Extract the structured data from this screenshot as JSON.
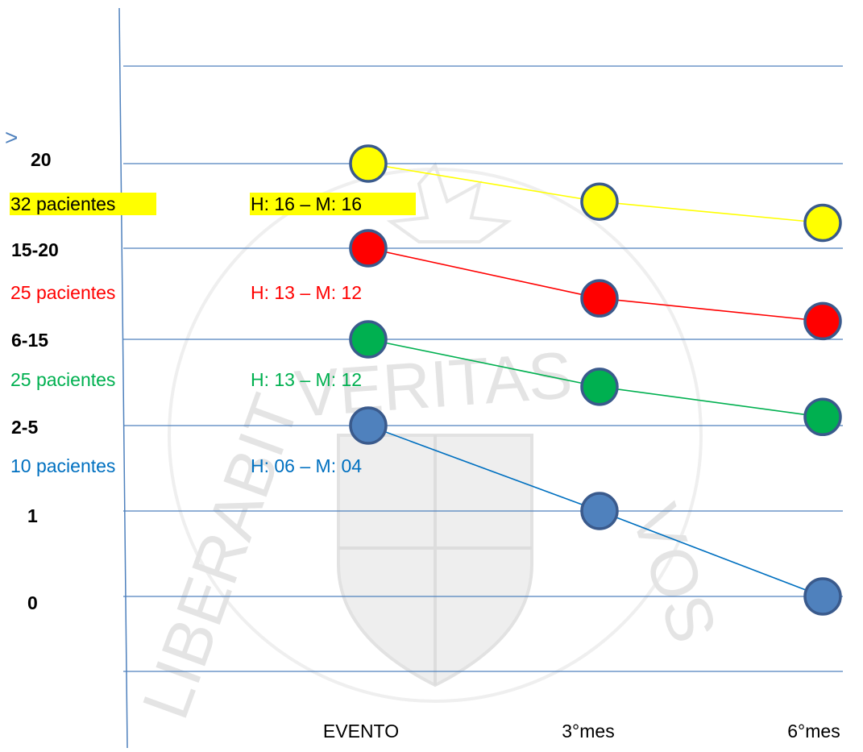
{
  "watermark_text": [
    "VERITAS",
    "LIBERABIT",
    "VOS"
  ],
  "chart_data": {
    "type": "line",
    "x": [
      "EVENTO",
      "3°mes",
      "6°mes"
    ],
    "y_tick_labels": [
      "20",
      "15-20",
      "6-15",
      "2-5",
      "1",
      "0"
    ],
    "y_top_marker": ">",
    "grid": true,
    "series": [
      {
        "tier": "20",
        "patients_label": "32 pacientes",
        "sex_label": "H: 16 – M: 16",
        "color": "#ffff00",
        "line_color": "#ffff00",
        "highlight": "#ffff00",
        "label_color": "#000000",
        "y_level": [
          5.0,
          4.55,
          4.3
        ]
      },
      {
        "tier": "15-20",
        "patients_label": "25 pacientes",
        "sex_label": "H: 13 – M: 12",
        "color": "#ff0000",
        "line_color": "#ff0000",
        "highlight": "",
        "label_color": "#ff0000",
        "y_level": [
          4.0,
          3.45,
          3.2
        ]
      },
      {
        "tier": "6-15",
        "patients_label": "25 pacientes",
        "sex_label": "H: 13 – M: 12",
        "color": "#00b050",
        "line_color": "#00b050",
        "highlight": "",
        "label_color": "#00b050",
        "y_level": [
          3.0,
          2.45,
          2.1
        ]
      },
      {
        "tier": "2-5",
        "patients_label": "10 pacientes",
        "sex_label": "H: 06 – M: 04",
        "color": "#4f81bd",
        "line_color": "#0070c0",
        "highlight": "",
        "label_color": "#0070c0",
        "y_level": [
          2.0,
          1.0,
          0.0
        ]
      }
    ]
  }
}
